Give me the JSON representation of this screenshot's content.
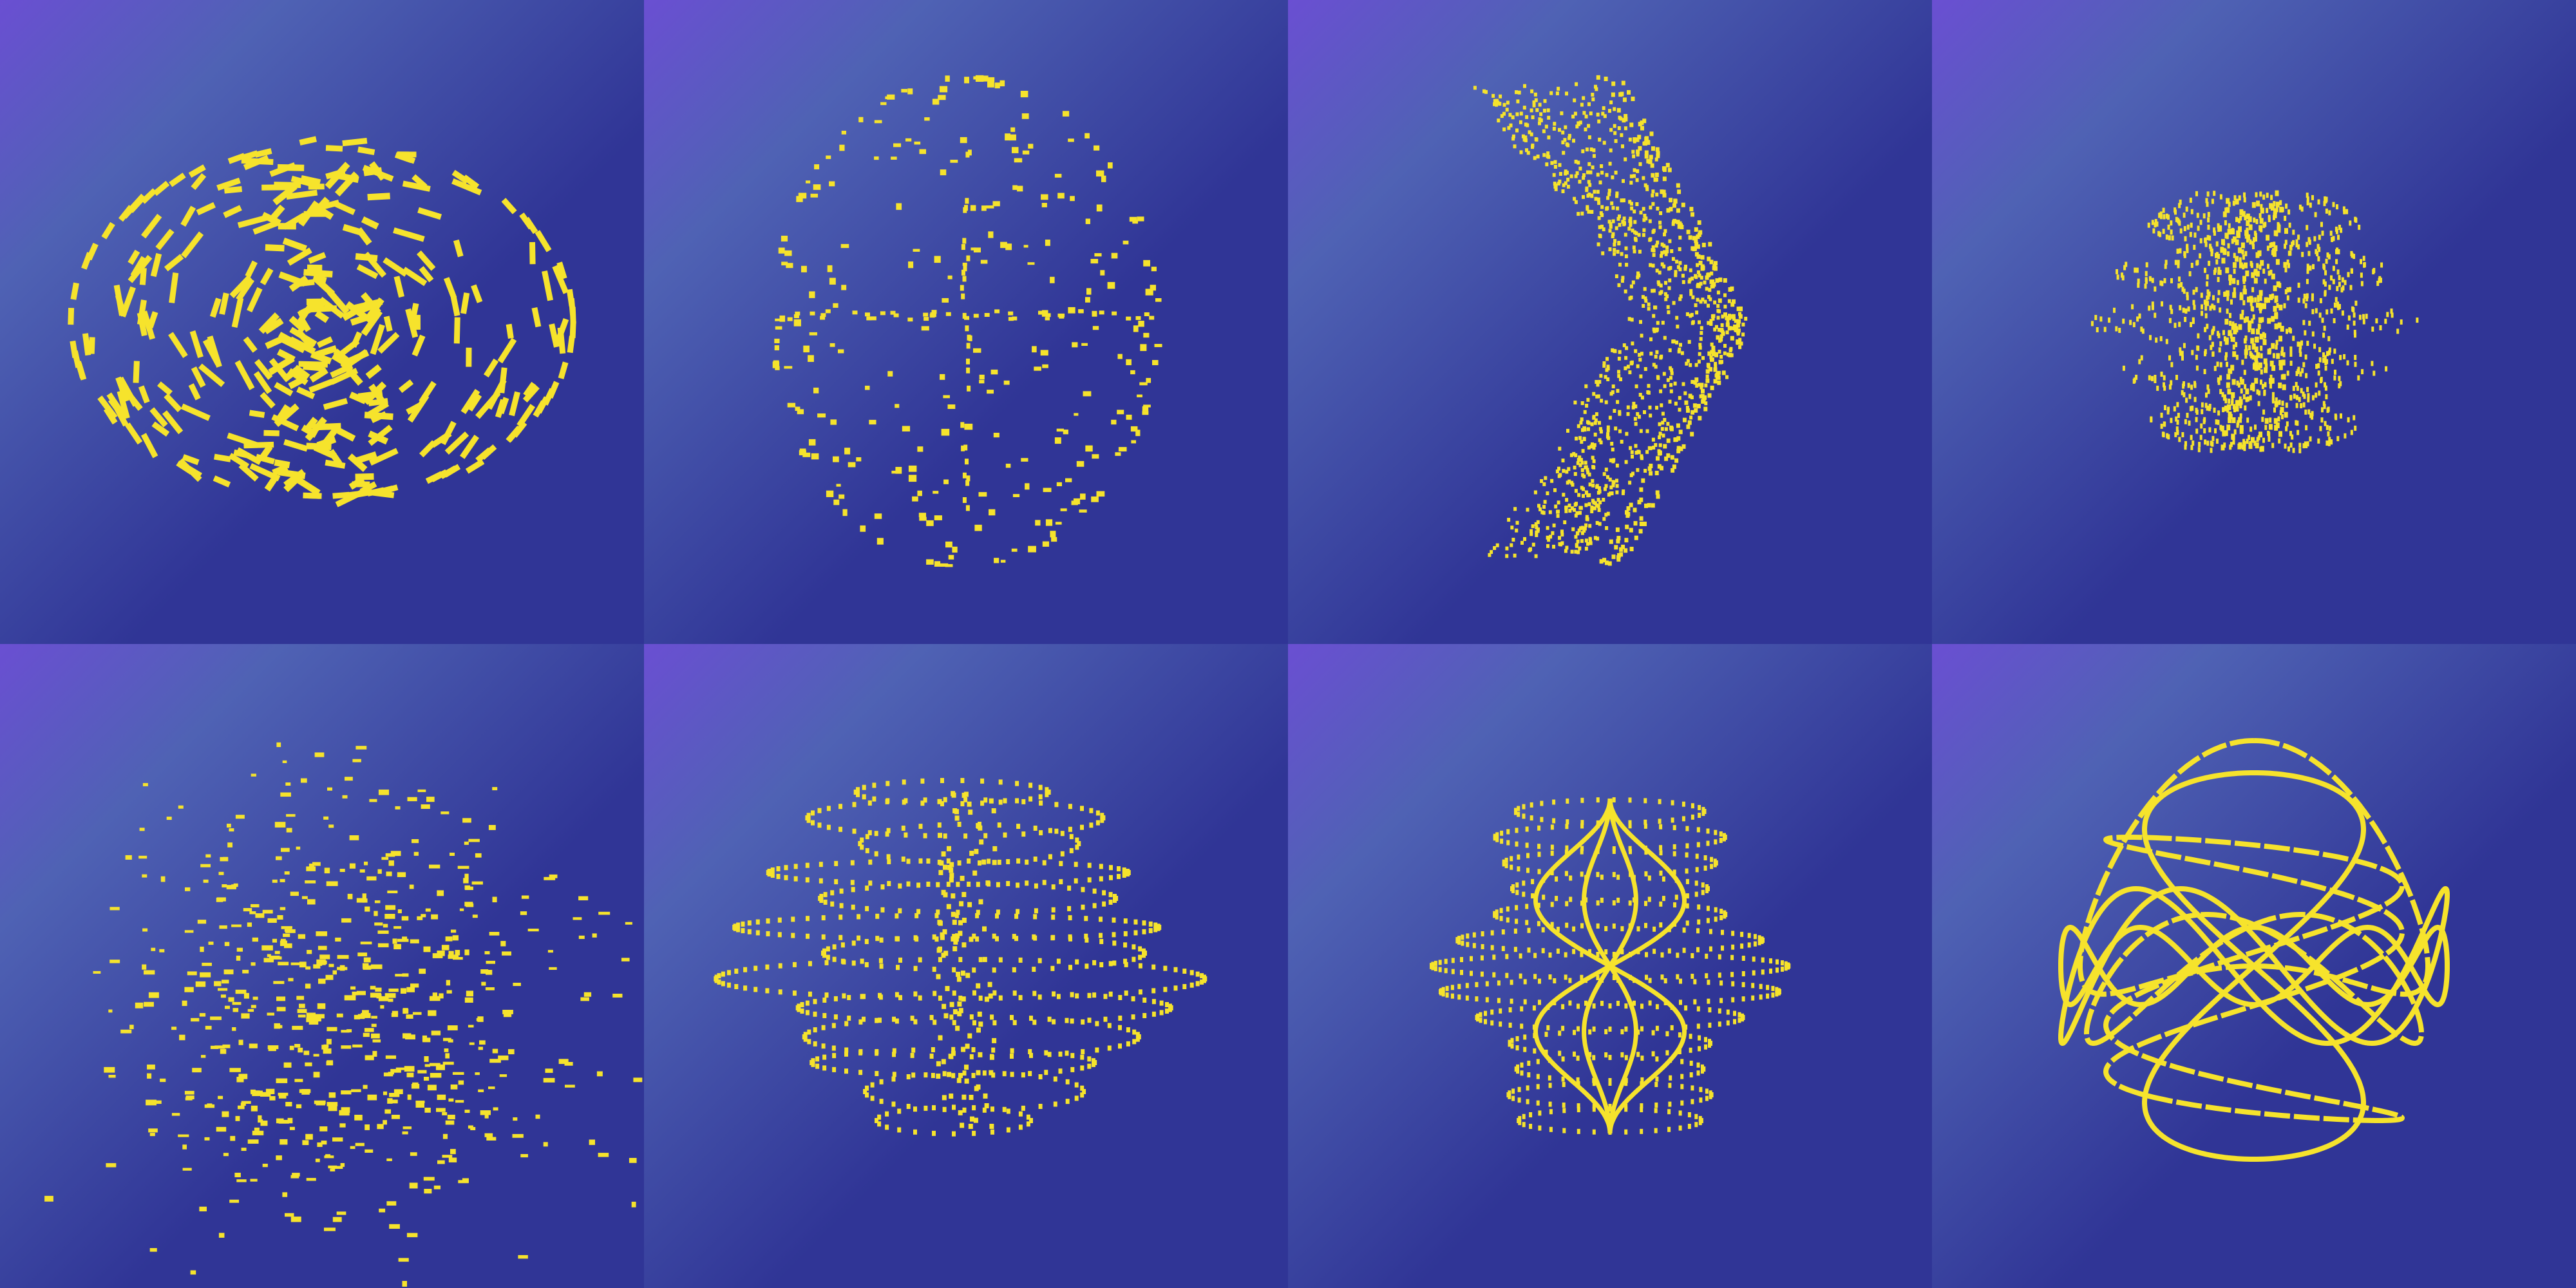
{
  "colors": {
    "background_top_left": "#6a4fd2",
    "background_mid": "#4f62b4",
    "background_base": "#303596",
    "figure_yellow": "#f6e32c"
  },
  "panels": [
    {
      "shape": "ellipsoid-scattered-dashes"
    },
    {
      "shape": "sphere-sparse-dots"
    },
    {
      "shape": "chevron-dot-cloud"
    },
    {
      "shape": "spiky-spindle-dot-cloud"
    },
    {
      "shape": "scattered-clusters"
    },
    {
      "shape": "stacked-ellipse-rings"
    },
    {
      "shape": "lissajous-rings"
    },
    {
      "shape": "knot-curves"
    }
  ]
}
